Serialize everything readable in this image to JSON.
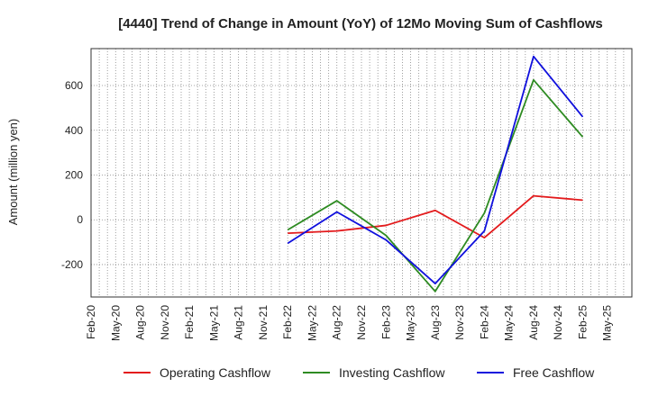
{
  "chart_data": {
    "type": "line",
    "title": "[4440]  Trend of Change in Amount (YoY) of 12Mo Moving Sum of Cashflows",
    "xlabel": "",
    "ylabel": "Amount (million yen)",
    "ylim": [
      -345,
      765
    ],
    "yticks": [
      -200,
      0,
      200,
      400,
      600
    ],
    "ytick_labels": [
      "-200",
      "0",
      "200",
      "400",
      "600"
    ],
    "categories": [
      "Feb-20",
      "May-20",
      "Aug-20",
      "Nov-20",
      "Feb-21",
      "May-21",
      "Aug-21",
      "Nov-21",
      "Feb-22",
      "May-22",
      "Aug-22",
      "Nov-22",
      "Feb-23",
      "May-23",
      "Aug-23",
      "Nov-23",
      "Feb-24",
      "May-24",
      "Aug-24",
      "Nov-24",
      "Feb-25",
      "May-25"
    ],
    "grid": true,
    "legend_position": "bottom",
    "series": [
      {
        "name": "Operating Cashflow",
        "color": "#e31a1c",
        "values": [
          null,
          null,
          null,
          null,
          null,
          null,
          null,
          null,
          -60,
          null,
          -50,
          null,
          -25,
          null,
          42,
          null,
          -80,
          null,
          107,
          null,
          88,
          null
        ]
      },
      {
        "name": "Investing Cashflow",
        "color": "#2e8b22",
        "values": [
          null,
          null,
          null,
          null,
          null,
          null,
          null,
          null,
          -45,
          null,
          85,
          null,
          -70,
          null,
          -320,
          null,
          30,
          null,
          625,
          null,
          370,
          null
        ]
      },
      {
        "name": "Free Cashflow",
        "color": "#1010dd",
        "values": [
          null,
          null,
          null,
          null,
          null,
          null,
          null,
          null,
          -105,
          null,
          35,
          null,
          -90,
          null,
          -285,
          null,
          -50,
          null,
          730,
          null,
          460,
          null
        ]
      }
    ]
  }
}
